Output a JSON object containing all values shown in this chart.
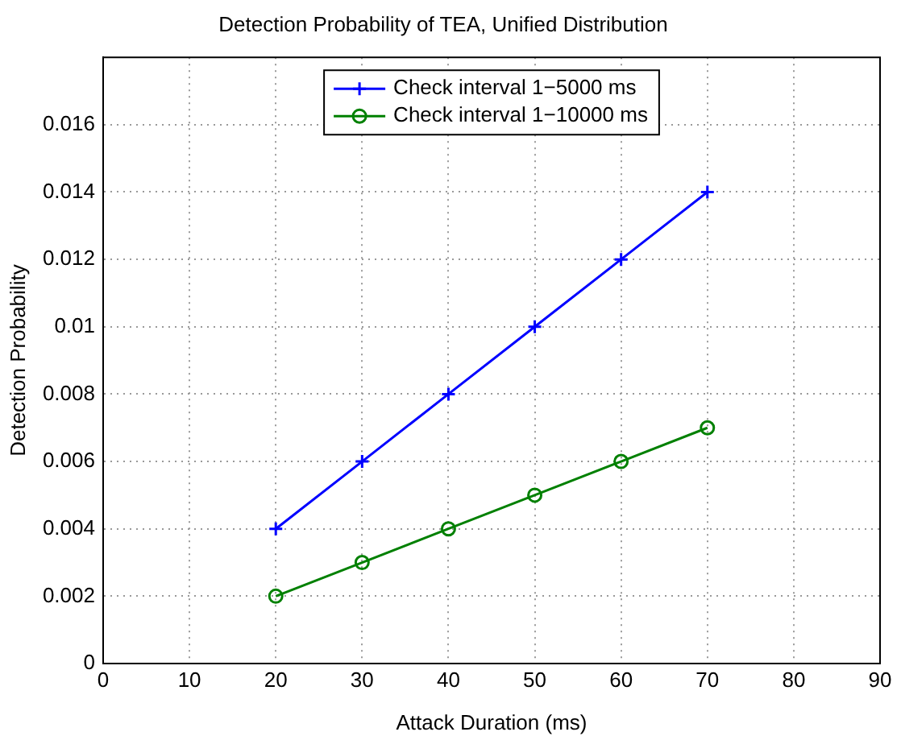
{
  "chart_data": {
    "type": "line",
    "title": "Detection Probability of TEA, Unified Distribution",
    "xlabel": "Attack Duration (ms)",
    "ylabel": "Detection Probability",
    "x": [
      20,
      30,
      40,
      50,
      60,
      70
    ],
    "series": [
      {
        "name": "Check interval 1−5000 ms",
        "color": "#0000ff",
        "marker": "cross",
        "values": [
          0.004,
          0.006,
          0.008,
          0.01,
          0.012,
          0.014
        ]
      },
      {
        "name": "Check interval 1−10000 ms",
        "color": "#008000",
        "marker": "circle",
        "values": [
          0.002,
          0.003,
          0.004,
          0.005,
          0.006,
          0.007
        ]
      }
    ],
    "xlim": [
      0,
      90
    ],
    "xticks": [
      0,
      10,
      20,
      30,
      40,
      50,
      60,
      70,
      80,
      90
    ],
    "ylim": [
      0,
      0.018
    ],
    "yticks": [
      0,
      0.002,
      0.004,
      0.006,
      0.008,
      {
        "value": 0.01,
        "label": "0.01"
      },
      0.012,
      0.014,
      0.016
    ],
    "grid": true,
    "legend": "top",
    "line_style": "solid"
  }
}
